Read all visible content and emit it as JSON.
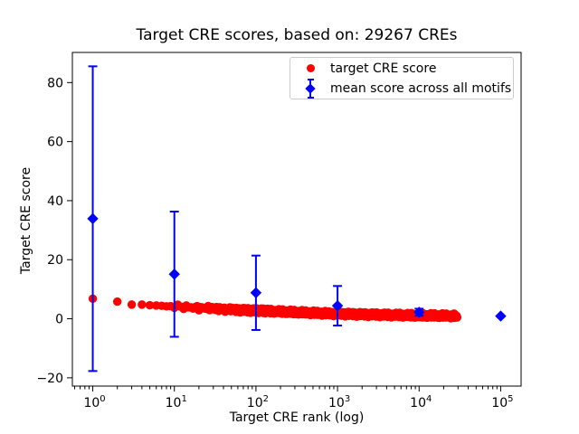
{
  "title": "Target CRE scores, based on: 29267 CREs",
  "axes": {
    "xlabel": "Target CRE rank (log)",
    "ylabel": "Target CRE score"
  },
  "colors": {
    "red": "#ff0000",
    "blue": "#0000ff",
    "axis": "#000000",
    "legend_border": "#cccccc"
  },
  "legend": {
    "items": [
      {
        "label": "target CRE score",
        "marker": "red-circle"
      },
      {
        "label": "mean score across all motifs",
        "marker": "blue-diamond-errorbar"
      }
    ]
  },
  "chart_data": {
    "type": "scatter",
    "title": "Target CRE scores, based on: 29267 CREs",
    "xlabel": "Target CRE rank (log)",
    "ylabel": "Target CRE score",
    "x_scale": "log",
    "xlim_log10": [
      -0.25,
      5.25
    ],
    "ylim": [
      -22.8,
      90.2
    ],
    "x_ticks": {
      "base": 10,
      "exponents": [
        0,
        1,
        2,
        3,
        4,
        5
      ]
    },
    "y_ticks": [
      -20,
      0,
      20,
      40,
      60,
      80
    ],
    "grid": false,
    "legend_position": "upper right",
    "series": [
      {
        "name": "target CRE score",
        "marker": "circle",
        "color": "#ff0000",
        "n_points": 29267,
        "curve_points": [
          [
            1,
            6.8
          ],
          [
            2,
            5.8
          ],
          [
            3,
            4.8
          ],
          [
            4,
            4.8
          ],
          [
            5,
            4.6
          ],
          [
            7,
            4.4
          ],
          [
            10,
            4.2
          ],
          [
            20,
            3.7
          ],
          [
            50,
            3.1
          ],
          [
            100,
            2.8
          ],
          [
            300,
            2.2
          ],
          [
            1000,
            1.7
          ],
          [
            3000,
            1.4
          ],
          [
            10000,
            1.1
          ],
          [
            29267,
            0.95
          ]
        ]
      },
      {
        "name": "mean score across all motifs",
        "marker": "diamond",
        "color": "#0000ff",
        "x": [
          1,
          10,
          100,
          1000,
          10000,
          100000
        ],
        "mean": [
          33.9,
          15.1,
          8.8,
          4.4,
          2.2,
          0.9
        ],
        "err": [
          51.6,
          21.2,
          12.6,
          6.7,
          1.2,
          0.15
        ]
      }
    ]
  }
}
